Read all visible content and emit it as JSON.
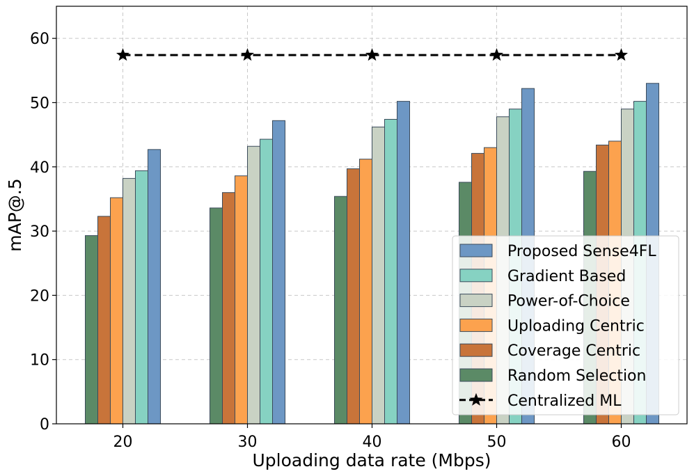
{
  "chart_data": {
    "type": "bar",
    "title": "",
    "xlabel": "Uploading data rate (Mbps)",
    "ylabel": "mAP@.5",
    "ylim": [
      0,
      65
    ],
    "yticks": [
      0,
      10,
      20,
      30,
      40,
      50,
      60
    ],
    "categories": [
      "20",
      "30",
      "40",
      "50",
      "60"
    ],
    "grid": true,
    "legend_position": "bottom-right",
    "series": [
      {
        "name": "Random Selection",
        "color": "#5b8a66",
        "values": [
          29.3,
          33.6,
          35.4,
          37.6,
          39.3
        ]
      },
      {
        "name": "Coverage Centric",
        "color": "#c8743a",
        "values": [
          32.3,
          36.0,
          39.7,
          42.1,
          43.4
        ]
      },
      {
        "name": "Uploading Centric",
        "color": "#fca24e",
        "values": [
          35.2,
          38.6,
          41.2,
          43.0,
          44.0
        ]
      },
      {
        "name": "Power-of-Choice",
        "color": "#c9d2c4",
        "values": [
          38.2,
          43.2,
          46.2,
          47.8,
          49.0
        ]
      },
      {
        "name": "Gradient Based",
        "color": "#86d2c2",
        "values": [
          39.4,
          44.3,
          47.4,
          49.0,
          50.2
        ]
      },
      {
        "name": "Proposed Sense4FL",
        "color": "#6d97c4",
        "values": [
          42.7,
          47.2,
          50.2,
          52.2,
          53.0
        ]
      }
    ],
    "line_series": [
      {
        "name": "Centralized ML",
        "color": "#000000",
        "style": "dashed",
        "marker": "star",
        "values": [
          57.4,
          57.4,
          57.4,
          57.4,
          57.4
        ]
      }
    ],
    "legend_order": [
      "Proposed Sense4FL",
      "Gradient Based",
      "Power-of-Choice",
      "Uploading Centric",
      "Coverage Centric",
      "Random Selection",
      "Centralized ML"
    ]
  }
}
